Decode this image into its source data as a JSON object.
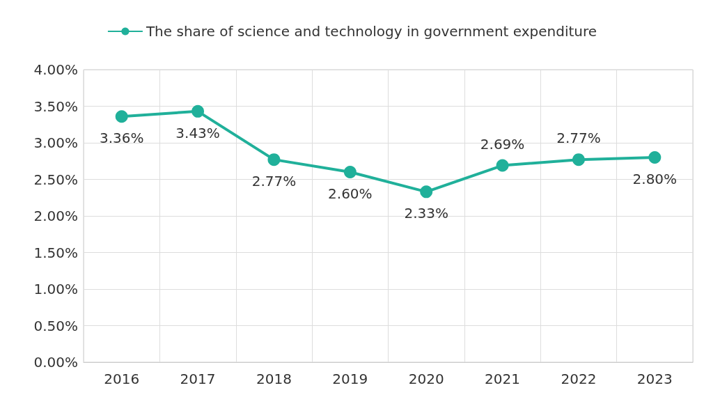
{
  "chart_data": {
    "type": "line",
    "categories": [
      "2016",
      "2017",
      "2018",
      "2019",
      "2020",
      "2021",
      "2022",
      "2023"
    ],
    "series": [
      {
        "name": "The share of science and technology in government expenditure",
        "color": "#20b09a",
        "values": [
          3.36,
          3.43,
          2.77,
          2.6,
          2.33,
          2.69,
          2.77,
          2.8
        ],
        "value_labels": [
          "3.36%",
          "3.43%",
          "2.77%",
          "2.60%",
          "2.33%",
          "2.69%",
          "2.77%",
          "2.80%"
        ]
      }
    ],
    "ylim": [
      0,
      4
    ],
    "yticks": [
      {
        "value": 0,
        "label": "0.00%"
      },
      {
        "value": 0.5,
        "label": "0.50%"
      },
      {
        "value": 1,
        "label": "1.00%"
      },
      {
        "value": 1.5,
        "label": "1.50%"
      },
      {
        "value": 2,
        "label": "2.00%"
      },
      {
        "value": 2.5,
        "label": "2.50%"
      },
      {
        "value": 3,
        "label": "3.00%"
      },
      {
        "value": 3.5,
        "label": "3.50%"
      },
      {
        "value": 4,
        "label": "4.00%"
      }
    ],
    "grid": true,
    "legend": "top",
    "marker": "circle",
    "line_style": "solid"
  }
}
